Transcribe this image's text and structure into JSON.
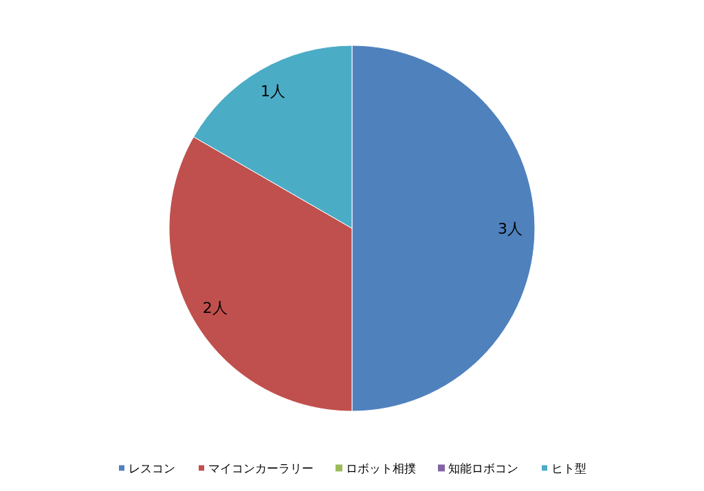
{
  "chart_data": {
    "type": "pie",
    "categories": [
      "レスコン",
      "マイコンカーラリー",
      "ロボット相撲",
      "知能ロボコン",
      "ヒト型"
    ],
    "values": [
      3,
      2,
      0,
      0,
      1
    ],
    "colors": [
      "#4f81bd",
      "#c0504d",
      "#9bbb59",
      "#8064a2",
      "#4bacc6"
    ],
    "value_labels": [
      "3人",
      "2人",
      null,
      null,
      "1人"
    ],
    "legend": "bottom"
  }
}
